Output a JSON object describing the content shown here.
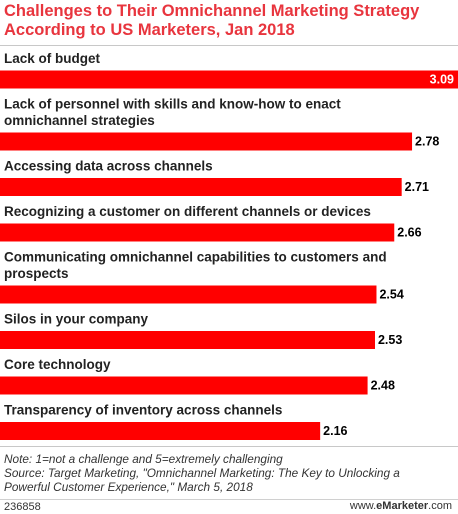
{
  "title_line1": "Challenges to Their Omnichannel Marketing Strategy",
  "title_line2": "According to US Marketers, Jan 2018",
  "note": "Note: 1=not a challenge and 5=extremely challenging",
  "source_line1": "Source: Target Marketing, \"Omnichannel Marketing: The Key to Unlocking a",
  "source_line2": "Powerful Customer Experience,\" March 5, 2018",
  "chart_id": "236858",
  "brand_prefix": "www.",
  "brand_name": "eMarketer",
  "brand_suffix": ".com",
  "colors": {
    "bar": "#ff0000",
    "title": "#e8353e"
  },
  "chart_data": {
    "type": "bar",
    "orientation": "horizontal",
    "categories": [
      [
        "Lack of budget"
      ],
      [
        "Lack of personnel with skills and know-how to enact",
        "omnichannel strategies"
      ],
      [
        "Accessing data across channels"
      ],
      [
        "Recognizing a customer on different channels or devices"
      ],
      [
        "Communicating omnichannel capabilities to customers and",
        "prospects"
      ],
      [
        "Silos in your company"
      ],
      [
        "Core technology"
      ],
      [
        "Transparency of inventory across channels"
      ]
    ],
    "values": [
      3.09,
      2.78,
      2.71,
      2.66,
      2.54,
      2.53,
      2.48,
      2.16
    ],
    "value_labels": [
      "3.09",
      "2.78",
      "2.71",
      "2.66",
      "2.54",
      "2.53",
      "2.48",
      "2.16"
    ],
    "xlim": [
      0,
      3.09
    ]
  }
}
